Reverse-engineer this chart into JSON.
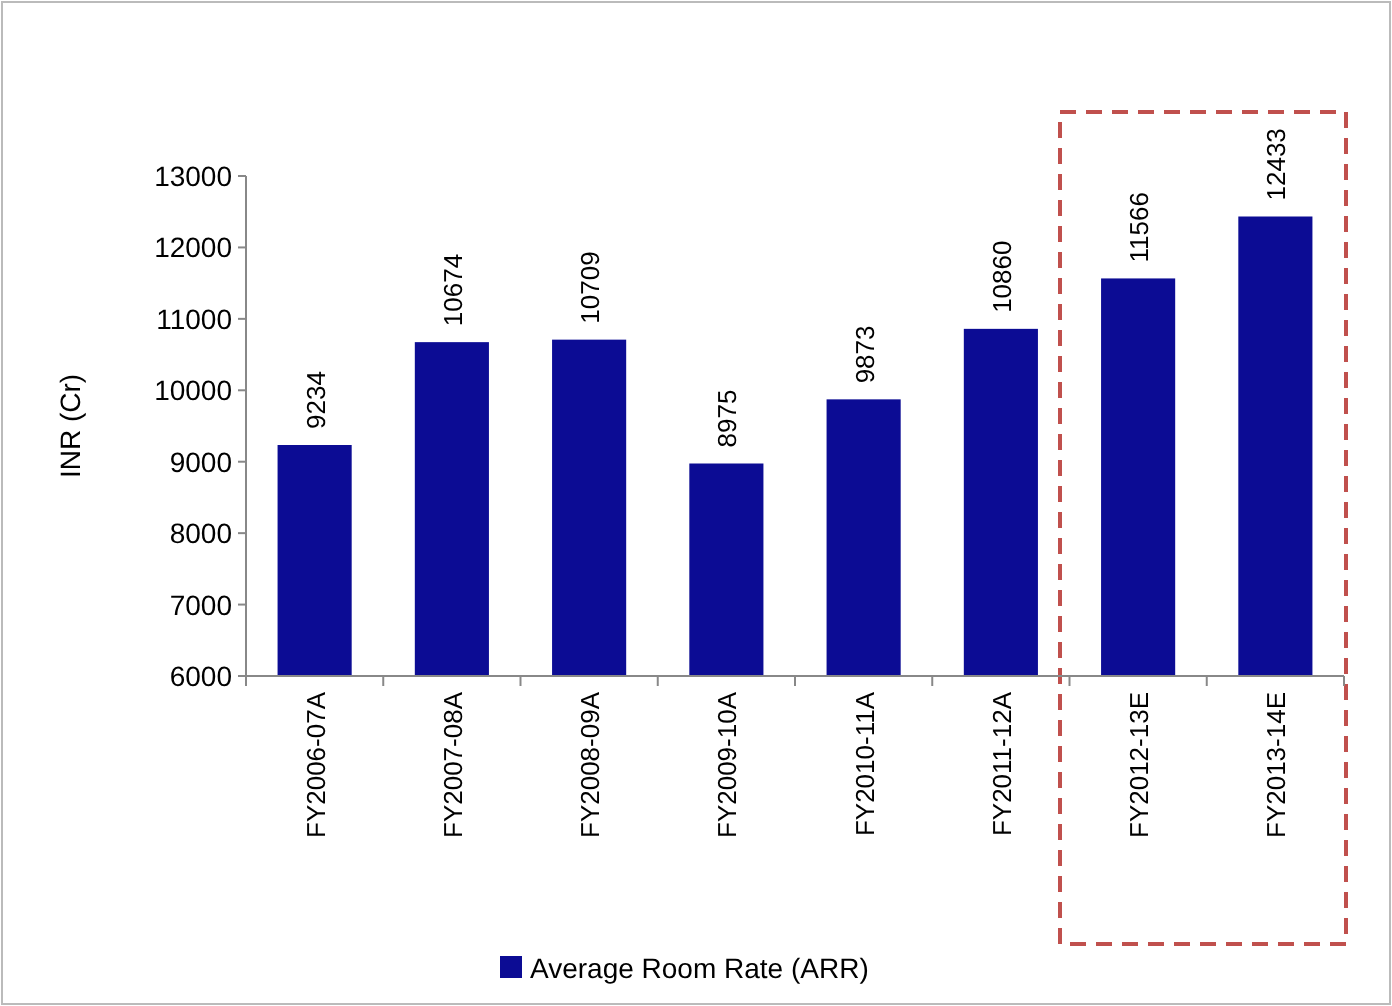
{
  "chart_data": {
    "type": "bar",
    "ylabel": "INR (Cr)",
    "categories": [
      "FY2006-07A",
      "FY2007-08A",
      "FY2008-09A",
      "FY2009-10A",
      "FY2010-11A",
      "FY2011-12A",
      "FY2012-13E",
      "FY2013-14E"
    ],
    "series": [
      {
        "name": "Average Room Rate (ARR)",
        "color": "#0c0c94",
        "values": [
          9234,
          10674,
          10709,
          8975,
          9873,
          10860,
          11566,
          12433
        ]
      }
    ],
    "ylim": [
      6000,
      13000
    ],
    "yticks": [
      6000,
      7000,
      8000,
      9000,
      10000,
      11000,
      12000,
      13000
    ],
    "data_labels": true,
    "grid": false,
    "legend": "bottom"
  }
}
